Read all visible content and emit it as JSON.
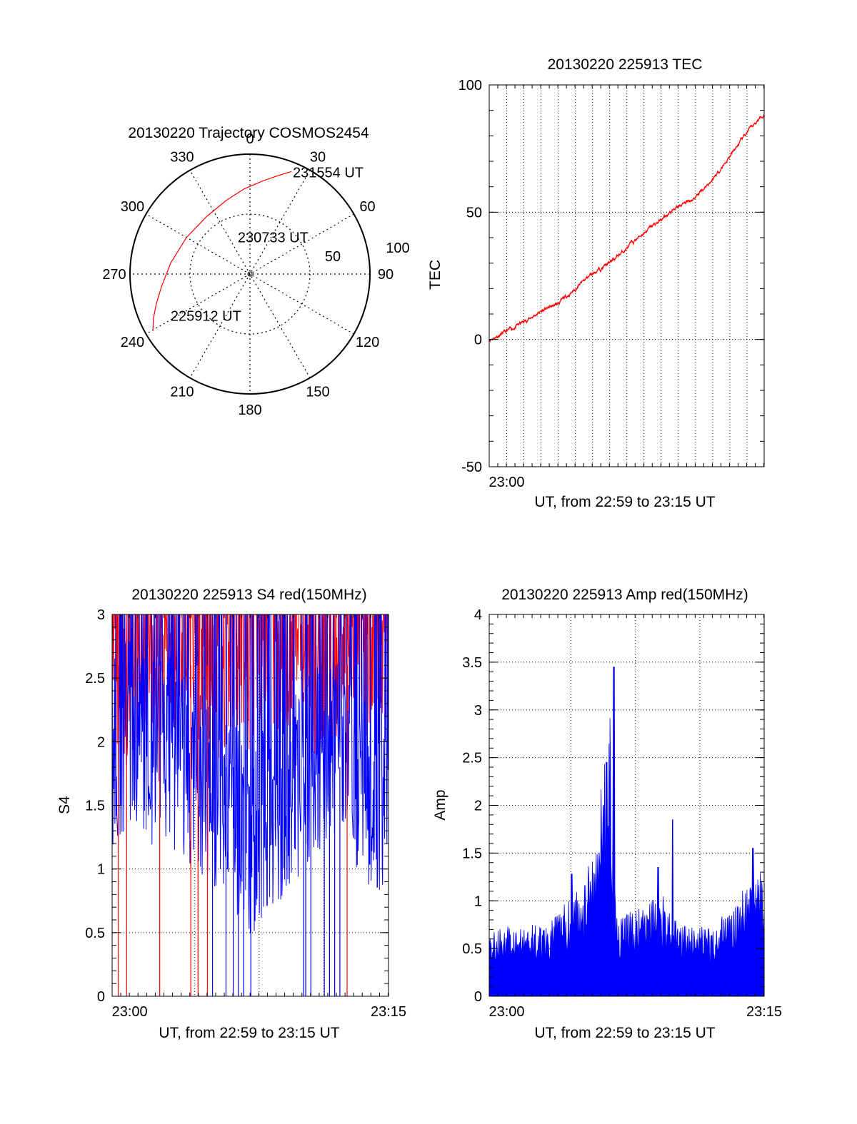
{
  "chart_data": [
    {
      "type": "polar",
      "title": "20130220 Trajectory COSMOS2454",
      "azimuth_labels": [
        "0",
        "30",
        "60",
        "90",
        "120",
        "150",
        "180",
        "210",
        "240",
        "270",
        "300",
        "330"
      ],
      "ring_labels": [
        "50",
        "100"
      ],
      "track_color": "#ff0000",
      "track": [
        {
          "az": 240,
          "zenith": 84
        },
        {
          "az": 245,
          "zenith": 80
        },
        {
          "az": 252,
          "zenith": 74
        },
        {
          "az": 262,
          "zenith": 67
        },
        {
          "az": 278,
          "zenith": 60
        },
        {
          "az": 300,
          "zenith": 55
        },
        {
          "az": 323,
          "zenith": 54
        },
        {
          "az": 342,
          "zenith": 58
        },
        {
          "az": 356,
          "zenith": 64
        },
        {
          "az": 7,
          "zenith": 70
        },
        {
          "az": 15,
          "zenith": 76
        },
        {
          "az": 22,
          "zenith": 83
        }
      ],
      "annotations": [
        {
          "text": "231554 UT",
          "az": 22,
          "zenith": 83
        },
        {
          "text": "230733 UT",
          "az": 340,
          "zenith": 30
        },
        {
          "text": "225912 UT",
          "az": 243,
          "zenith": 68
        }
      ]
    },
    {
      "type": "line",
      "title": "20130220 225913 TEC",
      "xlabel": "UT, from 22:59 to 23:15 UT",
      "ylabel": "TEC",
      "xlim": [
        22.983,
        23.25
      ],
      "ylim": [
        -50,
        100
      ],
      "yticks": [
        "-50",
        "0",
        "50",
        "100"
      ],
      "xtick_labels": [
        {
          "x": 23.0,
          "label": "23:00"
        }
      ],
      "line_color": "#ff0000",
      "x": [
        22.983,
        23.0,
        23.017,
        23.033,
        23.05,
        23.067,
        23.083,
        23.1,
        23.117,
        23.133,
        23.15,
        23.167,
        23.183,
        23.2,
        23.217,
        23.233,
        23.25
      ],
      "y": [
        0,
        3,
        7,
        11,
        14,
        20,
        26,
        30,
        36,
        42,
        47,
        52,
        56,
        63,
        72,
        81,
        89
      ]
    },
    {
      "type": "line",
      "title": "20130220 225913 S4 red(150MHz)",
      "xlabel": "UT, from 22:59 to 23:15 UT",
      "ylabel": "S4",
      "xlim": [
        22.983,
        23.25
      ],
      "ylim": [
        0,
        3
      ],
      "yticks": [
        "0",
        "0.5",
        "1",
        "1.5",
        "2",
        "2.5",
        "3"
      ],
      "xtick_labels": [
        {
          "x": 23.0,
          "label": "23:00"
        },
        {
          "x": 23.25,
          "label": "23:15"
        }
      ],
      "series": [
        {
          "color": "#ff0000",
          "x": [
            22.983,
            23.0,
            23.017,
            23.033,
            23.05,
            23.067,
            23.083,
            23.1,
            23.117,
            23.133,
            23.15,
            23.167,
            23.183,
            23.2,
            23.217,
            23.233,
            23.25
          ],
          "y": [
            2.6,
            2.4,
            2.7,
            2.5,
            2.8,
            2.6,
            2.3,
            2.7,
            2.5,
            2.8,
            2.6,
            2.7,
            2.4,
            2.6,
            2.9,
            2.5,
            2.7
          ]
        },
        {
          "color": "#0000ff",
          "x": [
            22.983,
            23.0,
            23.017,
            23.033,
            23.05,
            23.067,
            23.083,
            23.1,
            23.117,
            23.133,
            23.15,
            23.167,
            23.183,
            23.2,
            23.217,
            23.233,
            23.25
          ],
          "y": [
            1.9,
            2.1,
            1.9,
            2.0,
            1.8,
            1.7,
            1.6,
            1.4,
            1.2,
            1.4,
            1.5,
            1.7,
            1.9,
            2.0,
            1.8,
            1.5,
            1.6
          ]
        }
      ],
      "dropouts_red": [
        22.989,
        22.997,
        23.029,
        23.059,
        23.066,
        23.075,
        23.21
      ],
      "dropouts_blue": [
        23.08,
        23.093,
        23.1,
        23.105,
        23.11,
        23.117,
        23.168,
        23.17,
        23.175,
        23.188,
        23.193,
        23.198,
        23.203
      ]
    },
    {
      "type": "bar",
      "title": "20130220 225913 Amp red(150MHz)",
      "xlabel": "UT, from 22:59 to 23:15 UT",
      "ylabel": "Amp",
      "xlim": [
        22.983,
        23.25
      ],
      "ylim": [
        0,
        4
      ],
      "yticks": [
        "0",
        "0.5",
        "1",
        "1.5",
        "2",
        "2.5",
        "3",
        "3.5",
        "4"
      ],
      "xtick_labels": [
        {
          "x": 23.0,
          "label": "23:00"
        },
        {
          "x": 23.25,
          "label": "23:15"
        }
      ],
      "bar_color": "#0000ff",
      "x": [
        22.983,
        23.0,
        23.017,
        23.033,
        23.05,
        23.067,
        23.083,
        23.09,
        23.1,
        23.108,
        23.117,
        23.133,
        23.15,
        23.167,
        23.183,
        23.2,
        23.217,
        23.233,
        23.25
      ],
      "y": [
        0.55,
        0.6,
        0.58,
        0.62,
        0.7,
        0.9,
        1.2,
        1.6,
        2.4,
        0.65,
        0.7,
        0.75,
        0.9,
        0.6,
        0.62,
        0.58,
        0.75,
        0.95,
        1.1
      ],
      "peaks": [
        {
          "x": 23.104,
          "y": 3.45
        },
        {
          "x": 23.097,
          "y": 2.45
        },
        {
          "x": 23.161,
          "y": 1.85
        },
        {
          "x": 23.147,
          "y": 1.35
        },
        {
          "x": 23.239,
          "y": 1.55
        },
        {
          "x": 23.063,
          "y": 1.28
        }
      ]
    }
  ]
}
